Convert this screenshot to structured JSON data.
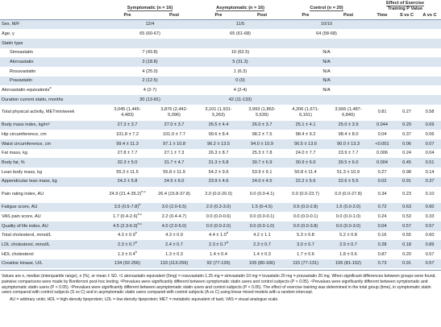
{
  "header": {
    "groups": [
      "Symptomatic (n = 16)",
      "Asymptomatic (n = 16)",
      "Control (n = 20)"
    ],
    "effect": "Effect of Exercise Training P Value",
    "sub": [
      "Pre",
      "Post",
      "Pre",
      "Post",
      "Pre",
      "Post",
      "Time",
      "S vs C",
      "A vs C"
    ]
  },
  "rows": [
    {
      "label": "Sex, M/F",
      "cells": [
        "12/4",
        "11/5",
        "10/10"
      ]
    },
    {
      "label": "Age, y",
      "cells": [
        "65 (60-67)",
        "65 (61-68)",
        "64 (58-68)"
      ]
    },
    {
      "label": "Statin type",
      "cells": [],
      "rows": [
        {
          "label": "Simvastatin",
          "cells": [
            "7 (43.8)",
            "10 (62.5)",
            "N/A"
          ]
        },
        {
          "label": "Atorvastatin",
          "cells": [
            "3 (18.8)",
            "5 (31.3)",
            "N/A"
          ]
        },
        {
          "label": "Rosuvastatin",
          "cells": [
            "4 (25.0)",
            "1 (6.3)",
            "N/A"
          ]
        },
        {
          "label": "Pravastatin",
          "cells": [
            "2 (12.5)",
            "0 (0)",
            "N/A"
          ]
        }
      ]
    },
    {
      "label": {
        "t": "Atorvastatin equivalents",
        "sup": "a"
      },
      "cells": [
        "4 (2-7)",
        "4 (2-4)",
        "N/A"
      ]
    },
    {
      "label": "Duration current statin, months",
      "cells": [
        "30 (13-81)",
        "42 (11-133)"
      ]
    },
    {
      "label": "Total physical activity, METmin/week",
      "cells": [
        "3,045 (1,445-4,483)",
        "3,876 (2,442-5,096)",
        "3,101 (1,931-5,263)",
        "3,993 (1,863-5,639)",
        "4,206 (1,671-6,161)",
        "3,566 (1,487-6,840)",
        "0.81",
        "0.27",
        "0.58"
      ]
    },
    {
      "label": "Body mass index, kg/m²",
      "cells": [
        "27.3 ± 3.7",
        "27.0 ± 3.7",
        "26.5 ± 4.4",
        "26.0 ± 3.7",
        "25.1 ± 4.1",
        "25.0 ± 3.9",
        "0.044",
        "0.29",
        "0.69"
      ]
    },
    {
      "label": "Hip circumference, cm",
      "cells": [
        "101.8 ± 7.2",
        "101.0 ± 7.7",
        "99.6 ± 8.4",
        "98.2 ± 7.5",
        "98.4 ± 9.2",
        "98.4 ± 8.0",
        "0.04",
        "0.37",
        "0.06"
      ]
    },
    {
      "label": "Waist circumference, cm",
      "cells": [
        "99.4 ± 11.3",
        "97.1 ± 10.8",
        "96.2 ± 13.5",
        "94.0 ± 10.9",
        "90.5 ± 13.6",
        "90.0 ± 13.3",
        "<0.001",
        "0.06",
        "0.07"
      ]
    },
    {
      "label": "Fat mass, kg",
      "cells": [
        "27.8 ± 7.7",
        "27.1 ± 7.3",
        "26.3 ± 8.7",
        "25.3 ± 7.8",
        "24.0 ± 7.7",
        "23.9 ± 7.7",
        "0.006",
        "0.24",
        "0.04"
      ]
    },
    {
      "label": "Body fat, %",
      "cells": [
        "32.3 ± 5.0",
        "31.7 ± 4.7",
        "31.3 ± 6.8",
        "30.7 ± 6.9",
        "30.9 ± 6.0",
        "30.5 ± 6.0",
        "0.004",
        "0.45",
        "0.51"
      ]
    },
    {
      "label": "Lean body mass, kg",
      "cells": [
        "55.3 ± 11.5",
        "55.8 ± 11.9",
        "54.2 ± 9.6",
        "53.9 ± 9.1",
        "50.8 ± 11.4",
        "51.3 ± 10.9",
        "0.27",
        "0.98",
        "0.14"
      ]
    },
    {
      "label": "Appendicular lean mass, kg",
      "cells": [
        "24.2 ± 5.8",
        "24.5 ± 6.0",
        "23.9 ± 4.6",
        "24.0 ± 4.5",
        "22.2 ± 5.6",
        "22.6 ± 5.5",
        "0.02",
        "0.91",
        "0.37"
      ]
    },
    {
      "label": "Pain rating index, AU",
      "cells": [
        {
          "t": "24.9 (21.4-35.2)",
          "sup": "b,c"
        },
        "26.4 (15.8-37.8)",
        "2.0 (0.0-20.0)",
        "0.0 (0.0-4.1)",
        "0.0 (0.0-23.7)",
        "0.0 (0.0-27.8)",
        "0.34",
        "0.23",
        "0.10"
      ]
    },
    {
      "label": "Fatigue score, AU",
      "cells": [
        {
          "t": "3.5 (0.5-7.8)",
          "sup": "b"
        },
        "3.0 (2.0-6.5)",
        "2.0 (0.3-3.0)",
        "1.5 (0-4.5)",
        "0.5 (0.0-2.8)",
        "1.5 (0.0-2.0)",
        "0.72",
        "0.63",
        "0.60"
      ]
    },
    {
      "label": "VAS pain score, AU",
      "cells": [
        {
          "t": "1.7 (0.4-2.6)",
          "sup": "b,c"
        },
        "2.2 (0.4-4.7)",
        "0.0 (0.0-0.6)",
        "0.0 (0.0-0.1)",
        "0.0 (0.0-0.1)",
        "0.0 (0.0-1.0)",
        "0.24",
        "0.53",
        "0.33"
      ]
    },
    {
      "label": "Quality of life index, AU",
      "cells": [
        {
          "t": "4.5 (2.3-6.0)",
          "sup": "b,c"
        },
        "4.0 (2.0-5.0)",
        "0.0 (0.0-2.0)",
        "0.0 (0.0-1.0)",
        "0.0 (0.0-3.8)",
        "0.0 (0.0-3.0)",
        "0.04",
        "0.57",
        "0.57"
      ]
    },
    {
      "label": "Total cholesterol, mmol/L",
      "cells": [
        {
          "t": "4.3 ± 0.9",
          "sup": "b"
        },
        "4.3 ± 0.9",
        {
          "t": "4.4 ± 1.0",
          "sup": "d"
        },
        "4.2 ± 1.1",
        "5.3 ± 0.8",
        "5.2 ± 0.8",
        "0.16",
        "0.55",
        "0.60"
      ]
    },
    {
      "label": "LDL cholesterol, mmol/L",
      "cells": [
        {
          "t": "2.3 ± 0.7",
          "sup": "b"
        },
        "2.4 ± 0.7",
        {
          "t": "2.3 ± 0.7",
          "sup": "d"
        },
        "2.3 ± 0.7",
        "3.0 ± 0.7",
        "2.9 ± 0.7",
        "0.28",
        "0.18",
        "0.89"
      ]
    },
    {
      "label": "HDL cholesterol",
      "cells": [
        {
          "t": "1.3 ± 0.4",
          "sup": "b"
        },
        "1.3 ± 0.3",
        "1.4 ± 0.4",
        "1.4 ± 0.3",
        "1.7 ± 0.6",
        "1.8 ± 0.6",
        "0.87",
        "0.20",
        "0.57"
      ]
    },
    {
      "label": "Creatine kinase, U/L",
      "cells": [
        "134 (92-256)",
        "133 (113-256)",
        "92 (77-126)",
        "105 (80-166)",
        "115 (77-131)",
        "105 (81-152)",
        "0.73",
        "0.91",
        "0.57"
      ]
    }
  ],
  "notes": [
    "Values are n, median (interquartile range), n (%), or mean ± SD. ᵃ1 atorvastatin equivalent (5mg) = rosuvastatin 1.25 mg = simvastatin 10 mg = lovastatin 20 mg = pravastatin 20 mg. When significant differences between groups were found, pairwise comparisons were made by Bonferroni post-hoc testing. ᵇPrevalues were significantly different between symptomatic statin users and control subjects (P < 0.05). ᶜPrevalues were significantly different between symptomatic and asymptomatic statin users (P < 0.05). ᵈPrevalues were significantly different between asymptomatic statin users and control subjects (P < 0.05). The effect of exercise training was determined in the total group (time), in symptomatic statin users compared with control subjects (S vs C) and in asymptomatic statin users compared with control subjects (A vs C) using linear mixed models with a random intercept.",
    "AU = arbitrary units; HDL = high-density lipoprotein; LDL = low-density lipoprotein; MET = metabolic equivalent of task; VAS = visual analogue scale."
  ]
}
